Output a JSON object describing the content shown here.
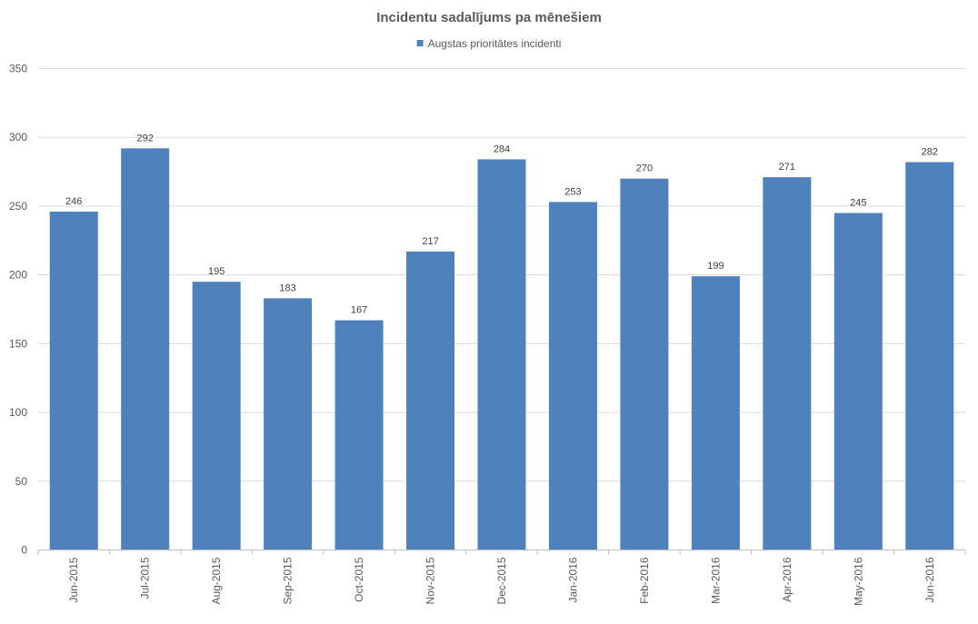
{
  "chart_data": {
    "type": "bar",
    "title": "Incidentu sadalījums pa mēnešiem",
    "xlabel": "",
    "ylabel": "",
    "ylim": [
      0,
      350
    ],
    "yticks": [
      0,
      50,
      100,
      150,
      200,
      250,
      300,
      350
    ],
    "grid": true,
    "legend_position": "top-center",
    "categories": [
      "Jun-2015",
      "Jul-2015",
      "Aug-2015",
      "Sep-2015",
      "Oct-2015",
      "Nov-2015",
      "Dec-2015",
      "Jan-2016",
      "Feb-2016",
      "Mar-2016",
      "Apr-2016",
      "May-2016",
      "Jun-2016"
    ],
    "series": [
      {
        "name": "Augstas prioritātes incidenti",
        "color": "#4f81bd",
        "values": [
          246,
          292,
          195,
          183,
          167,
          217,
          284,
          253,
          270,
          199,
          271,
          245,
          282
        ]
      }
    ]
  }
}
